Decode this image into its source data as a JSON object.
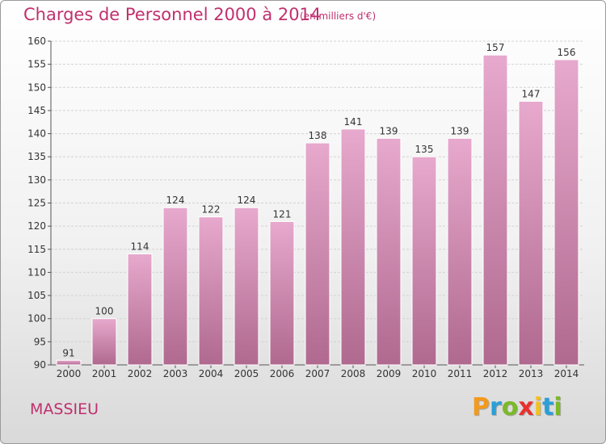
{
  "header": {
    "title": "Charges de Personnel 2000 à 2014",
    "subtitle": "(en milliers d'€)"
  },
  "footer": {
    "commune": "MASSIEU",
    "logo_text": "Proxiti"
  },
  "colors": {
    "title": "#c0306e",
    "bar_top": "#e7a9cd",
    "bar_bottom": "#b0698f"
  },
  "chart_data": {
    "type": "bar",
    "categories": [
      "2000",
      "2001",
      "2002",
      "2003",
      "2004",
      "2005",
      "2006",
      "2007",
      "2008",
      "2009",
      "2010",
      "2011",
      "2012",
      "2013",
      "2014"
    ],
    "values": [
      91,
      100,
      114,
      124,
      122,
      124,
      121,
      138,
      141,
      139,
      135,
      139,
      157,
      147,
      156
    ],
    "title": "Charges de Personnel 2000 à 2014",
    "subtitle": "(en milliers d'€)",
    "ylim": [
      90,
      160
    ],
    "yticks": [
      90,
      95,
      100,
      105,
      110,
      115,
      120,
      125,
      130,
      135,
      140,
      145,
      150,
      155,
      160
    ],
    "grid": true,
    "data_labels": true
  }
}
